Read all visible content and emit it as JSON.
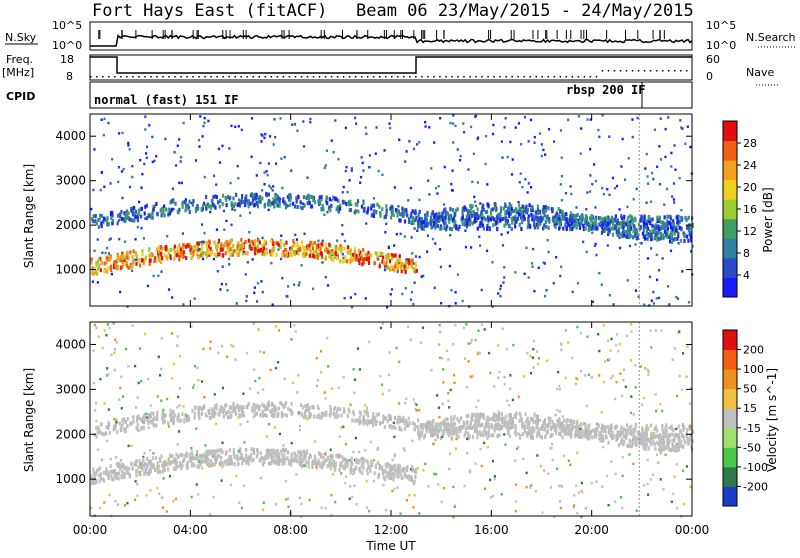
{
  "header": {
    "station": "Fort Hays East (fitACF)",
    "beam": "Beam 06 23/May/2015 - 24/May/2015"
  },
  "top_panels": {
    "nsky_label": "N.Sky",
    "nsky_ticks": [
      "10^5",
      "10^0"
    ],
    "nsearch_label": "N.Search",
    "nsearch_ticks": [
      "10^5",
      "10^0"
    ],
    "freq_label_line1": "Freq.",
    "freq_label_line2": "[MHz]",
    "freq_ticks": [
      "18",
      "8"
    ],
    "nave_label": "Nave",
    "nave_ticks": [
      "60",
      "0"
    ],
    "cpid_label": "CPID",
    "cpid_mode_1": "normal (fast) 151 IF",
    "cpid_mode_2": "rbsp 200 IF"
  },
  "chart_data": [
    {
      "type": "heatmap",
      "title": "Power",
      "ylabel": "Slant Range [km]",
      "xlabel": "",
      "ylim": [
        180,
        4500
      ],
      "y_ticks": [
        "4000",
        "3000",
        "2000",
        "1000"
      ],
      "colorbar": {
        "label": "Power [dB]",
        "ticks": [
          "28",
          "24",
          "20",
          "16",
          "12",
          "8",
          "4"
        ],
        "range": [
          0,
          30
        ],
        "colors": [
          "#1a1aff",
          "#2a4cc8",
          "#2f7fa0",
          "#3fa060",
          "#9ccc2f",
          "#f0d020",
          "#f5a020",
          "#f06010",
          "#e01010"
        ]
      },
      "bands": [
        {
          "name": "main-echo",
          "start_h": 0.0,
          "end_h": 13.0,
          "range_km": [
            1000,
            1500
          ],
          "power_db": 26
        },
        {
          "name": "upper-echo",
          "start_h": 0.0,
          "end_h": 8.0,
          "range_km": [
            2000,
            2600
          ],
          "power_db": 8
        },
        {
          "name": "evening-band",
          "start_h": 13.0,
          "end_h": 24.0,
          "range_km": [
            1800,
            2500
          ],
          "power_db": 10
        }
      ]
    },
    {
      "type": "heatmap",
      "title": "Velocity",
      "ylabel": "Slant Range [km]",
      "xlabel": "Time UT",
      "ylim": [
        180,
        4500
      ],
      "y_ticks": [
        "4000",
        "3000",
        "2000",
        "1000"
      ],
      "x_ticks": [
        "00:00",
        "04:00",
        "08:00",
        "12:00",
        "16:00",
        "20:00",
        "00:00"
      ],
      "colorbar": {
        "label": "Velocity [m s^-1]",
        "ticks": [
          "200",
          "100",
          "50",
          "15",
          "-15",
          "-50",
          "-100",
          "-200"
        ],
        "colors": [
          "#1a3cc8",
          "#2a7a4a",
          "#4cc84c",
          "#a0e070",
          "#c0c0c0",
          "#f0c040",
          "#f09020",
          "#f06010",
          "#e01010"
        ]
      }
    }
  ]
}
